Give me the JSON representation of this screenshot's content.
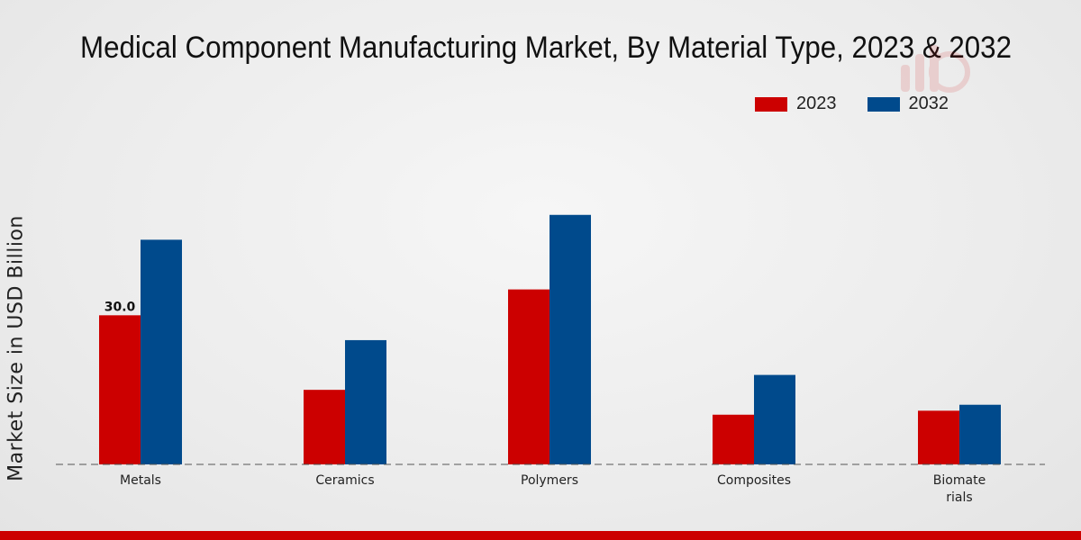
{
  "chart_data": {
    "type": "bar",
    "title": "Medical Component Manufacturing Market, By Material Type, 2023 & 2032",
    "xlabel": "",
    "ylabel": "Market Size in USD Billion",
    "ylim": [
      0,
      75
    ],
    "categories": [
      "Metals",
      "Ceramics",
      "Polymers",
      "Composites",
      "Biomaterials"
    ],
    "category_lines": [
      [
        "Metals"
      ],
      [
        "Ceramics"
      ],
      [
        "Polymers"
      ],
      [
        "Composites"
      ],
      [
        "Biomate",
        "rials"
      ]
    ],
    "series": [
      {
        "name": "2023",
        "color": "#cc0000",
        "values": [
          30.0,
          15.0,
          35.2,
          10.0,
          10.8
        ]
      },
      {
        "name": "2032",
        "color": "#004a8c",
        "values": [
          45.2,
          25.0,
          50.2,
          18.0,
          12.0
        ]
      }
    ],
    "data_labels": [
      {
        "series": 0,
        "index": 0,
        "text": "30.0"
      }
    ],
    "legend_position": "top-right",
    "grid": false
  }
}
